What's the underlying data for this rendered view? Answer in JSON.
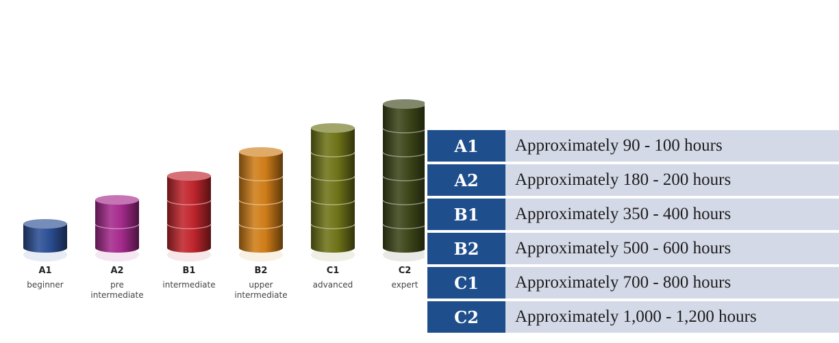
{
  "chart_data": {
    "type": "bar",
    "title": "",
    "xlabel": "",
    "ylabel": "",
    "categories": [
      "A1",
      "A2",
      "B1",
      "B2",
      "C1",
      "C2"
    ],
    "descriptions": [
      [
        "beginner"
      ],
      [
        "pre",
        "intermediate"
      ],
      [
        "intermediate"
      ],
      [
        "upper",
        "intermediate"
      ],
      [
        "advanced"
      ],
      [
        "expert"
      ]
    ],
    "values": [
      1,
      2,
      3,
      4,
      5,
      6
    ],
    "colors": [
      "#2c4f95",
      "#a52a8c",
      "#c0262d",
      "#cf7d18",
      "#6f7418",
      "#3c4619"
    ]
  },
  "hours_table": {
    "rows": [
      {
        "level": "A1",
        "hours": "Approximately 90 - 100 hours"
      },
      {
        "level": "A2",
        "hours": "Approximately 180 - 200 hours"
      },
      {
        "level": "B1",
        "hours": "Approximately 350 - 400 hours"
      },
      {
        "level": "B2",
        "hours": "Approximately 500 - 600 hours"
      },
      {
        "level": "C1",
        "hours": "Approximately 700 - 800 hours"
      },
      {
        "level": "C2",
        "hours": "Approximately 1,000 - 1,200 hours"
      }
    ]
  }
}
